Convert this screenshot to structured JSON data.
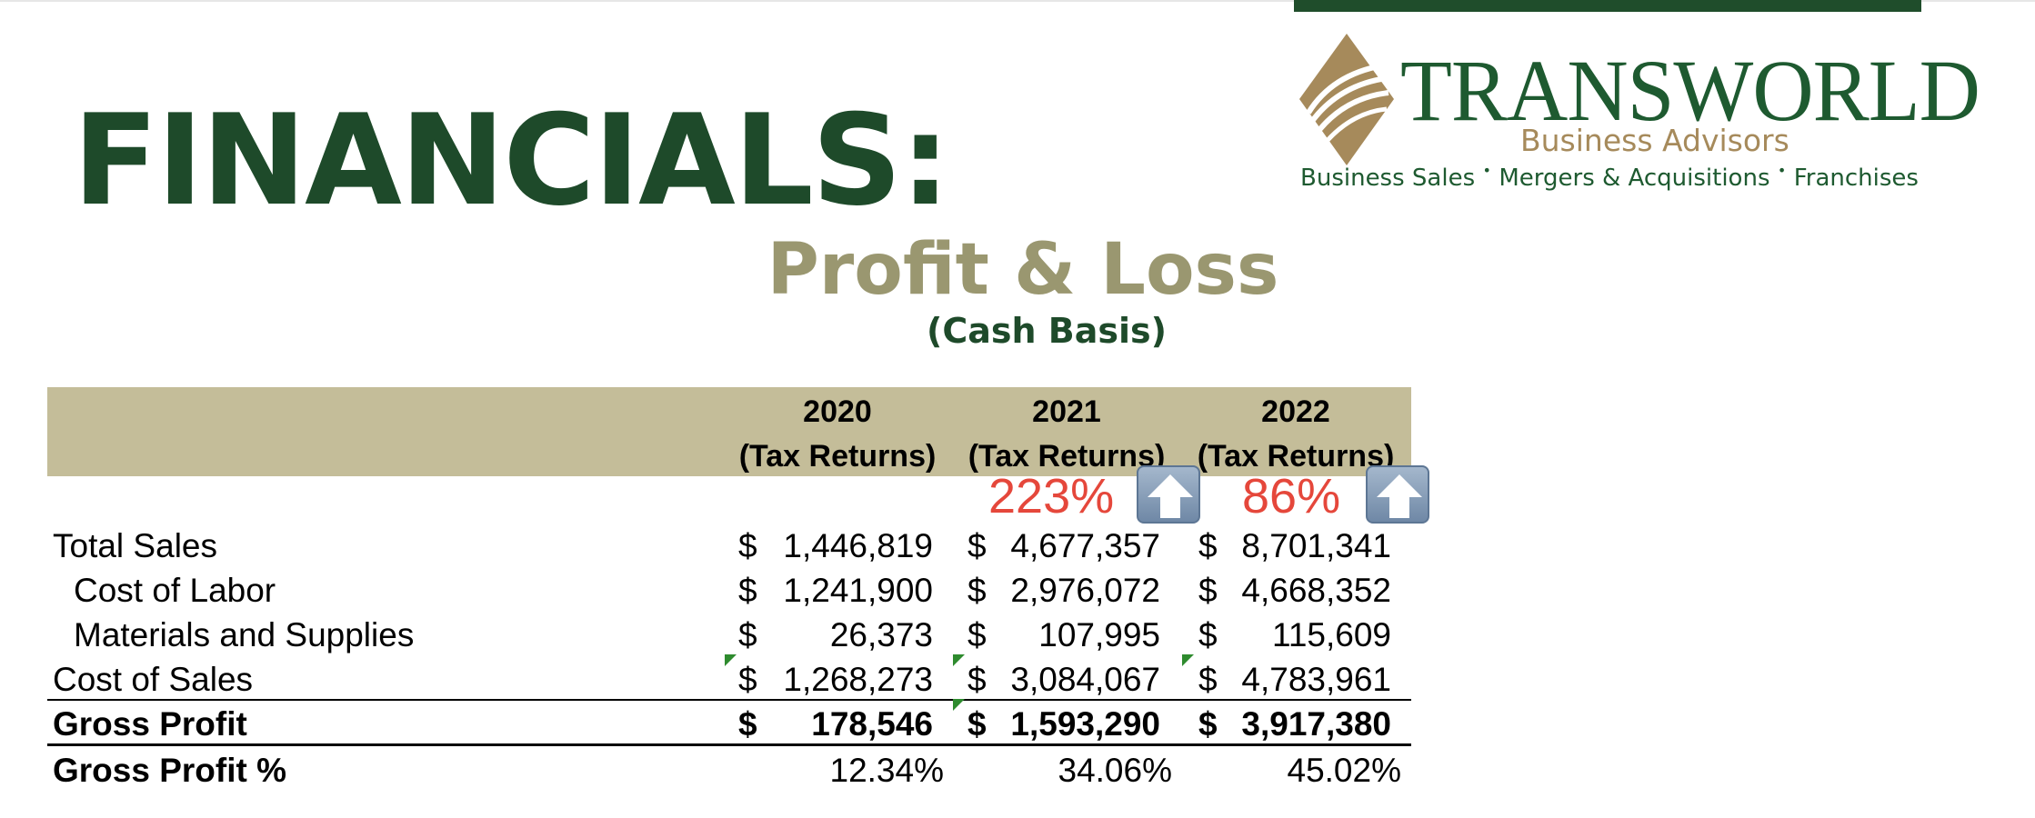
{
  "page": {
    "title": "FINANCIALS:"
  },
  "logo": {
    "name": "TRANSWORLD",
    "subtitle": "Business Advisors",
    "tagline": [
      "Business Sales",
      "Mergers & Acquisitions",
      "Franchises"
    ],
    "tagline_separator": "•",
    "colors": {
      "green": "#1e5a30",
      "gold": "#a68a5b"
    }
  },
  "report": {
    "title": "Profit & Loss",
    "subtitle": "(Cash Basis)"
  },
  "table": {
    "columns": [
      {
        "year": "2020",
        "source": "(Tax Returns)"
      },
      {
        "year": "2021",
        "source": "(Tax Returns)"
      },
      {
        "year": "2022",
        "source": "(Tax Returns)"
      }
    ],
    "growth": [
      {
        "value": "223%",
        "icon": "up-arrow-icon"
      },
      {
        "value": "86%",
        "icon": "up-arrow-icon"
      }
    ],
    "currency_symbol": "$",
    "rows": [
      {
        "label": "Total Sales",
        "values": [
          "1,446,819",
          "4,677,357",
          "8,701,341"
        ]
      },
      {
        "label": "Cost of Labor",
        "values": [
          "1,241,900",
          "2,976,072",
          "4,668,352"
        ]
      },
      {
        "label": "Materials and Supplies",
        "values": [
          "26,373",
          "107,995",
          "115,609"
        ]
      },
      {
        "label": "Cost of Sales",
        "values": [
          "1,268,273",
          "3,084,067",
          "4,783,961"
        ]
      },
      {
        "label": "Gross Profit",
        "values": [
          "178,546",
          "1,593,290",
          "3,917,380"
        ]
      }
    ],
    "percent_row": {
      "label": "Gross Profit %",
      "values": [
        "12.34%",
        "34.06%",
        "45.02%"
      ]
    },
    "colors": {
      "header_band": "#c4bd99",
      "growth": "#e5473b",
      "title_green": "#1e4a2a",
      "title_khaki": "#9a9770"
    }
  }
}
